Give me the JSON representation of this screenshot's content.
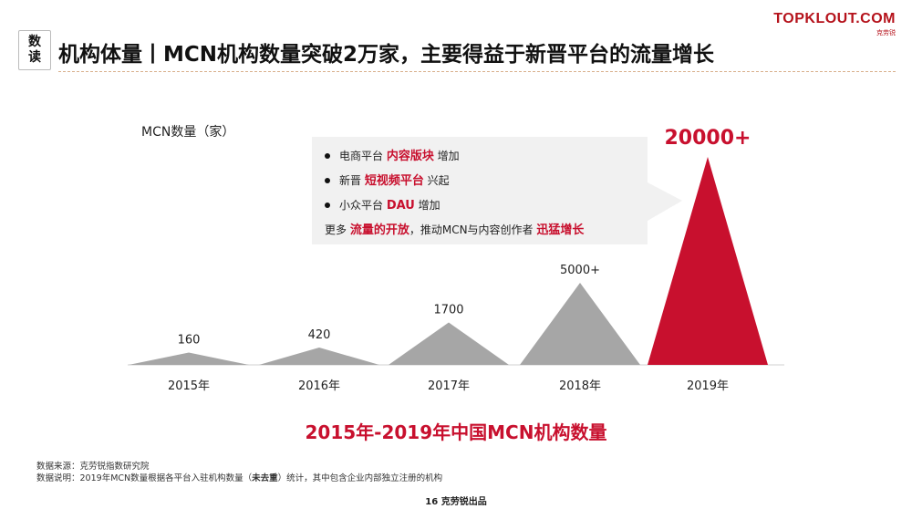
{
  "header": {
    "badge": [
      "数",
      "读"
    ],
    "title": "机构体量丨MCN机构数量突破2万家，主要得益于新晋平台的流量增长",
    "logo_text": "TOPKLOUT.COM",
    "logo_sub": "克劳锐"
  },
  "callout": {
    "items": [
      {
        "pre": "电商平台 ",
        "hl": "内容版块",
        "post": " 增加",
        "bullet": true
      },
      {
        "pre": "新晋 ",
        "hl": "短视频平台",
        "post": " 兴起",
        "bullet": true
      },
      {
        "pre": "小众平台 ",
        "hl": "DAU",
        "post": " 增加",
        "bullet": true
      },
      {
        "pre": "更多 ",
        "hl": "流量的开放",
        "mid": "，推动MCN与内容创作者 ",
        "hl2": "迅猛增长",
        "bullet": false
      }
    ]
  },
  "chart_data": {
    "type": "bar",
    "shape": "triangle",
    "title": "2015年-2019年中国MCN机构数量",
    "ylabel": "MCN数量（家）",
    "categories": [
      "2015年",
      "2016年",
      "2017年",
      "2018年",
      "2019年"
    ],
    "values": [
      160,
      420,
      1700,
      5000,
      20000
    ],
    "data_labels": [
      "160",
      "420",
      "1700",
      "5000+",
      "20000+"
    ],
    "colors": {
      "default": "#a6a6a6",
      "highlight": "#c8102e"
    },
    "highlight_index": 4
  },
  "footer": {
    "source_label": "数据来源：",
    "source": "克劳锐指数研究院",
    "note_label": "数据说明：",
    "note_pre": "2019年MCN数量根据各平台入驻机构数量（",
    "note_bold": "未去重",
    "note_post": "）统计，其中包含企业内部独立注册的机构",
    "page": "16 克劳锐出品"
  }
}
